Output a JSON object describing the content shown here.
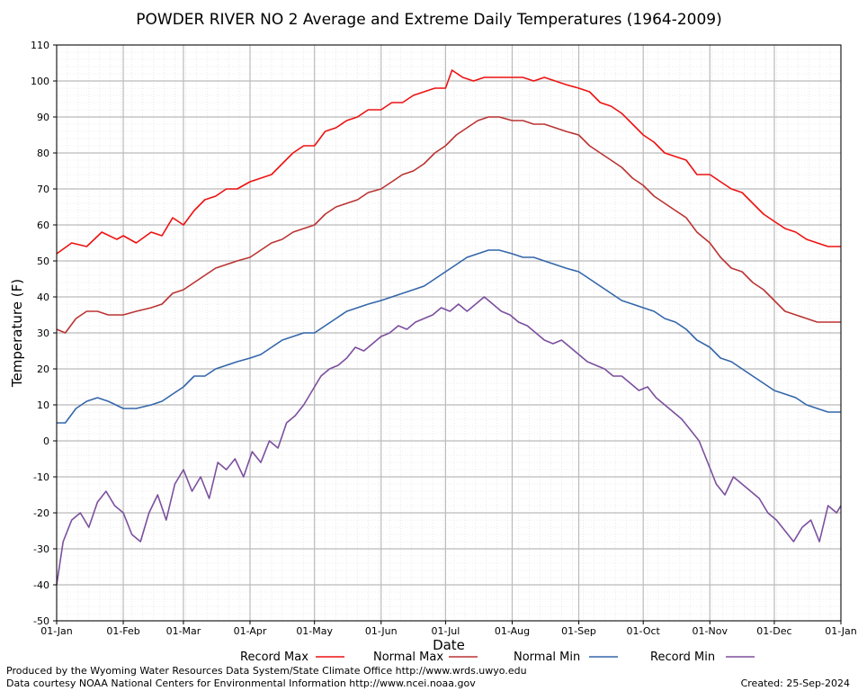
{
  "colors": {
    "record_max": "#ee1111",
    "normal_max": "#bb3333",
    "normal_min": "#3366aa",
    "record_min": "#7b4f9e",
    "grid_major": "#bbbbbb",
    "grid_minor": "#dddddd"
  },
  "footer": {
    "produced_by": "Produced by the Wyoming Water Resources Data System/State Climate Office http://www.wrds.uwyo.edu",
    "data_courtesy": "Data courtesy NOAA National Centers for Environmental Information http://www.ncei.noaa.gov",
    "created": "Created:  25-Sep-2024"
  },
  "chart_data": {
    "type": "line",
    "title": "POWDER RIVER NO 2 Average and Extreme Daily Temperatures (1964-2009)",
    "xlabel": "Date",
    "ylabel": "Temperature (F)",
    "ylim": [
      -50,
      110
    ],
    "yticks": [
      110,
      100,
      90,
      80,
      70,
      60,
      50,
      40,
      30,
      20,
      10,
      0,
      -10,
      -20,
      -30,
      -40,
      -50
    ],
    "xticks": [
      "01-Jan",
      "01-Feb",
      "01-Mar",
      "01-Apr",
      "01-May",
      "01-Jun",
      "01-Jul",
      "01-Aug",
      "01-Sep",
      "01-Oct",
      "01-Nov",
      "01-Dec",
      "01-Jan"
    ],
    "xtick_days": [
      1,
      32,
      60,
      91,
      121,
      152,
      182,
      213,
      244,
      274,
      305,
      335,
      366
    ],
    "grid": true,
    "legend_position": "bottom",
    "series": [
      {
        "name": "Record Max",
        "color_key": "record_max",
        "points": [
          [
            1,
            52
          ],
          [
            8,
            55
          ],
          [
            15,
            54
          ],
          [
            22,
            58
          ],
          [
            29,
            56
          ],
          [
            32,
            57
          ],
          [
            38,
            55
          ],
          [
            45,
            58
          ],
          [
            50,
            57
          ],
          [
            55,
            62
          ],
          [
            60,
            60
          ],
          [
            65,
            64
          ],
          [
            70,
            67
          ],
          [
            75,
            68
          ],
          [
            80,
            70
          ],
          [
            85,
            70
          ],
          [
            91,
            72
          ],
          [
            96,
            73
          ],
          [
            101,
            74
          ],
          [
            106,
            77
          ],
          [
            111,
            80
          ],
          [
            116,
            82
          ],
          [
            121,
            82
          ],
          [
            126,
            86
          ],
          [
            131,
            87
          ],
          [
            136,
            89
          ],
          [
            141,
            90
          ],
          [
            146,
            92
          ],
          [
            152,
            92
          ],
          [
            157,
            94
          ],
          [
            162,
            94
          ],
          [
            167,
            96
          ],
          [
            172,
            97
          ],
          [
            177,
            98
          ],
          [
            182,
            98
          ],
          [
            185,
            103
          ],
          [
            190,
            101
          ],
          [
            195,
            100
          ],
          [
            200,
            101
          ],
          [
            205,
            101
          ],
          [
            210,
            101
          ],
          [
            213,
            101
          ],
          [
            218,
            101
          ],
          [
            223,
            100
          ],
          [
            228,
            101
          ],
          [
            233,
            100
          ],
          [
            238,
            99
          ],
          [
            244,
            98
          ],
          [
            249,
            97
          ],
          [
            254,
            94
          ],
          [
            259,
            93
          ],
          [
            264,
            91
          ],
          [
            269,
            88
          ],
          [
            274,
            85
          ],
          [
            279,
            83
          ],
          [
            284,
            80
          ],
          [
            289,
            79
          ],
          [
            294,
            78
          ],
          [
            299,
            74
          ],
          [
            305,
            74
          ],
          [
            310,
            72
          ],
          [
            315,
            70
          ],
          [
            320,
            69
          ],
          [
            325,
            66
          ],
          [
            330,
            63
          ],
          [
            335,
            61
          ],
          [
            340,
            59
          ],
          [
            345,
            58
          ],
          [
            350,
            56
          ],
          [
            355,
            55
          ],
          [
            360,
            54
          ],
          [
            366,
            54
          ]
        ]
      },
      {
        "name": "Normal Max",
        "color_key": "normal_max",
        "points": [
          [
            1,
            31
          ],
          [
            5,
            30
          ],
          [
            10,
            34
          ],
          [
            15,
            36
          ],
          [
            20,
            36
          ],
          [
            25,
            35
          ],
          [
            32,
            35
          ],
          [
            38,
            36
          ],
          [
            45,
            37
          ],
          [
            50,
            38
          ],
          [
            55,
            41
          ],
          [
            60,
            42
          ],
          [
            65,
            44
          ],
          [
            70,
            46
          ],
          [
            75,
            48
          ],
          [
            80,
            49
          ],
          [
            85,
            50
          ],
          [
            91,
            51
          ],
          [
            96,
            53
          ],
          [
            101,
            55
          ],
          [
            106,
            56
          ],
          [
            111,
            58
          ],
          [
            116,
            59
          ],
          [
            121,
            60
          ],
          [
            126,
            63
          ],
          [
            131,
            65
          ],
          [
            136,
            66
          ],
          [
            141,
            67
          ],
          [
            146,
            69
          ],
          [
            152,
            70
          ],
          [
            157,
            72
          ],
          [
            162,
            74
          ],
          [
            167,
            75
          ],
          [
            172,
            77
          ],
          [
            177,
            80
          ],
          [
            182,
            82
          ],
          [
            187,
            85
          ],
          [
            192,
            87
          ],
          [
            197,
            89
          ],
          [
            202,
            90
          ],
          [
            207,
            90
          ],
          [
            213,
            89
          ],
          [
            218,
            89
          ],
          [
            223,
            88
          ],
          [
            228,
            88
          ],
          [
            233,
            87
          ],
          [
            238,
            86
          ],
          [
            244,
            85
          ],
          [
            249,
            82
          ],
          [
            254,
            80
          ],
          [
            259,
            78
          ],
          [
            264,
            76
          ],
          [
            269,
            73
          ],
          [
            274,
            71
          ],
          [
            279,
            68
          ],
          [
            284,
            66
          ],
          [
            289,
            64
          ],
          [
            294,
            62
          ],
          [
            299,
            58
          ],
          [
            305,
            55
          ],
          [
            310,
            51
          ],
          [
            315,
            48
          ],
          [
            320,
            47
          ],
          [
            325,
            44
          ],
          [
            330,
            42
          ],
          [
            335,
            39
          ],
          [
            340,
            36
          ],
          [
            345,
            35
          ],
          [
            350,
            34
          ],
          [
            355,
            33
          ],
          [
            360,
            33
          ],
          [
            366,
            33
          ]
        ]
      },
      {
        "name": "Normal Min",
        "color_key": "normal_min",
        "points": [
          [
            1,
            5
          ],
          [
            5,
            5
          ],
          [
            10,
            9
          ],
          [
            15,
            11
          ],
          [
            20,
            12
          ],
          [
            25,
            11
          ],
          [
            32,
            9
          ],
          [
            38,
            9
          ],
          [
            45,
            10
          ],
          [
            50,
            11
          ],
          [
            55,
            13
          ],
          [
            60,
            15
          ],
          [
            65,
            18
          ],
          [
            70,
            18
          ],
          [
            75,
            20
          ],
          [
            80,
            21
          ],
          [
            85,
            22
          ],
          [
            91,
            23
          ],
          [
            96,
            24
          ],
          [
            101,
            26
          ],
          [
            106,
            28
          ],
          [
            111,
            29
          ],
          [
            116,
            30
          ],
          [
            121,
            30
          ],
          [
            126,
            32
          ],
          [
            131,
            34
          ],
          [
            136,
            36
          ],
          [
            141,
            37
          ],
          [
            146,
            38
          ],
          [
            152,
            39
          ],
          [
            157,
            40
          ],
          [
            162,
            41
          ],
          [
            167,
            42
          ],
          [
            172,
            43
          ],
          [
            177,
            45
          ],
          [
            182,
            47
          ],
          [
            187,
            49
          ],
          [
            192,
            51
          ],
          [
            197,
            52
          ],
          [
            202,
            53
          ],
          [
            207,
            53
          ],
          [
            213,
            52
          ],
          [
            218,
            51
          ],
          [
            223,
            51
          ],
          [
            228,
            50
          ],
          [
            233,
            49
          ],
          [
            238,
            48
          ],
          [
            244,
            47
          ],
          [
            249,
            45
          ],
          [
            254,
            43
          ],
          [
            259,
            41
          ],
          [
            264,
            39
          ],
          [
            269,
            38
          ],
          [
            274,
            37
          ],
          [
            279,
            36
          ],
          [
            284,
            34
          ],
          [
            289,
            33
          ],
          [
            294,
            31
          ],
          [
            299,
            28
          ],
          [
            305,
            26
          ],
          [
            310,
            23
          ],
          [
            315,
            22
          ],
          [
            320,
            20
          ],
          [
            325,
            18
          ],
          [
            330,
            16
          ],
          [
            335,
            14
          ],
          [
            340,
            13
          ],
          [
            345,
            12
          ],
          [
            350,
            10
          ],
          [
            355,
            9
          ],
          [
            360,
            8
          ],
          [
            366,
            8
          ]
        ]
      },
      {
        "name": "Record Min",
        "color_key": "record_min",
        "points": [
          [
            1,
            -40
          ],
          [
            4,
            -28
          ],
          [
            8,
            -22
          ],
          [
            12,
            -20
          ],
          [
            16,
            -24
          ],
          [
            20,
            -17
          ],
          [
            24,
            -14
          ],
          [
            28,
            -18
          ],
          [
            32,
            -20
          ],
          [
            36,
            -26
          ],
          [
            40,
            -28
          ],
          [
            44,
            -20
          ],
          [
            48,
            -15
          ],
          [
            52,
            -22
          ],
          [
            56,
            -12
          ],
          [
            60,
            -8
          ],
          [
            64,
            -14
          ],
          [
            68,
            -10
          ],
          [
            72,
            -16
          ],
          [
            76,
            -6
          ],
          [
            80,
            -8
          ],
          [
            84,
            -5
          ],
          [
            88,
            -10
          ],
          [
            92,
            -3
          ],
          [
            96,
            -6
          ],
          [
            100,
            0
          ],
          [
            104,
            -2
          ],
          [
            108,
            5
          ],
          [
            112,
            7
          ],
          [
            116,
            10
          ],
          [
            120,
            14
          ],
          [
            124,
            18
          ],
          [
            128,
            20
          ],
          [
            132,
            21
          ],
          [
            136,
            23
          ],
          [
            140,
            26
          ],
          [
            144,
            25
          ],
          [
            148,
            27
          ],
          [
            152,
            29
          ],
          [
            156,
            30
          ],
          [
            160,
            32
          ],
          [
            164,
            31
          ],
          [
            168,
            33
          ],
          [
            172,
            34
          ],
          [
            176,
            35
          ],
          [
            180,
            37
          ],
          [
            184,
            36
          ],
          [
            188,
            38
          ],
          [
            192,
            36
          ],
          [
            196,
            38
          ],
          [
            200,
            40
          ],
          [
            204,
            38
          ],
          [
            208,
            36
          ],
          [
            212,
            35
          ],
          [
            216,
            33
          ],
          [
            220,
            32
          ],
          [
            224,
            30
          ],
          [
            228,
            28
          ],
          [
            232,
            27
          ],
          [
            236,
            28
          ],
          [
            240,
            26
          ],
          [
            244,
            24
          ],
          [
            248,
            22
          ],
          [
            252,
            21
          ],
          [
            256,
            20
          ],
          [
            260,
            18
          ],
          [
            264,
            18
          ],
          [
            268,
            16
          ],
          [
            272,
            14
          ],
          [
            276,
            15
          ],
          [
            280,
            12
          ],
          [
            284,
            10
          ],
          [
            288,
            8
          ],
          [
            292,
            6
          ],
          [
            296,
            3
          ],
          [
            300,
            0
          ],
          [
            304,
            -6
          ],
          [
            308,
            -12
          ],
          [
            312,
            -15
          ],
          [
            316,
            -10
          ],
          [
            320,
            -12
          ],
          [
            324,
            -14
          ],
          [
            328,
            -16
          ],
          [
            332,
            -20
          ],
          [
            336,
            -22
          ],
          [
            340,
            -25
          ],
          [
            344,
            -28
          ],
          [
            348,
            -24
          ],
          [
            352,
            -22
          ],
          [
            356,
            -28
          ],
          [
            360,
            -18
          ],
          [
            364,
            -20
          ],
          [
            366,
            -18
          ]
        ]
      }
    ]
  }
}
